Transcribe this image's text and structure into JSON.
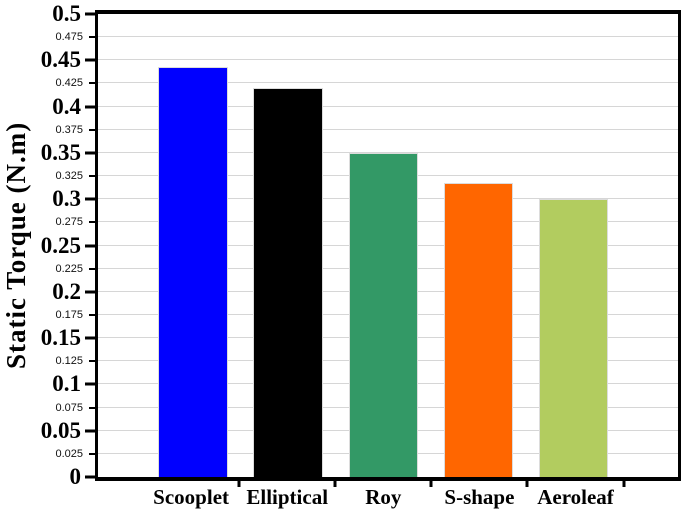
{
  "chart_data": {
    "type": "bar",
    "title": "",
    "xlabel": "",
    "ylabel": "Static Torque  (N.m)",
    "categories": [
      "Scooplet",
      "Elliptical",
      "Roy",
      "S-shape",
      "Aeroleaf"
    ],
    "values": [
      0.443,
      0.42,
      0.35,
      0.317,
      0.3
    ],
    "bar_colors": [
      "#0000ff",
      "#000000",
      "#339966",
      "#ff6600",
      "#b2cc5f"
    ],
    "ylim": [
      0,
      0.5
    ],
    "y_major_ticks": [
      {
        "v": 0,
        "label": "0"
      },
      {
        "v": 0.05,
        "label": "0.05"
      },
      {
        "v": 0.1,
        "label": "0.1"
      },
      {
        "v": 0.15,
        "label": "0.15"
      },
      {
        "v": 0.2,
        "label": "0.2"
      },
      {
        "v": 0.25,
        "label": "0.25"
      },
      {
        "v": 0.3,
        "label": "0.3"
      },
      {
        "v": 0.35,
        "label": "0.35"
      },
      {
        "v": 0.4,
        "label": "0.4"
      },
      {
        "v": 0.45,
        "label": "0.45"
      },
      {
        "v": 0.5,
        "label": "0.5"
      }
    ],
    "y_minor_ticks": [
      {
        "v": 0.025,
        "label": "0.025"
      },
      {
        "v": 0.075,
        "label": "0.075"
      },
      {
        "v": 0.125,
        "label": "0.125"
      },
      {
        "v": 0.175,
        "label": "0.175"
      },
      {
        "v": 0.225,
        "label": "0.225"
      },
      {
        "v": 0.275,
        "label": "0.275"
      },
      {
        "v": 0.325,
        "label": "0.325"
      },
      {
        "v": 0.375,
        "label": "0.375"
      },
      {
        "v": 0.425,
        "label": "0.425"
      },
      {
        "v": 0.475,
        "label": "0.475"
      }
    ],
    "grid": {
      "axis": "y",
      "step": 0.025,
      "color": "#d6d6d6"
    },
    "legend": null,
    "layout": {
      "bar_centers_pct": [
        16.4,
        32.8,
        49.2,
        65.6,
        82.0
      ],
      "bar_width_pct": 12,
      "x_boundary_ticks_pct": [
        24.6,
        41.0,
        57.4,
        73.8,
        90.2
      ]
    }
  },
  "style": {
    "background": "#ffffff",
    "axis_color": "#000000",
    "bar_edge_color": "#dcdcdc"
  }
}
